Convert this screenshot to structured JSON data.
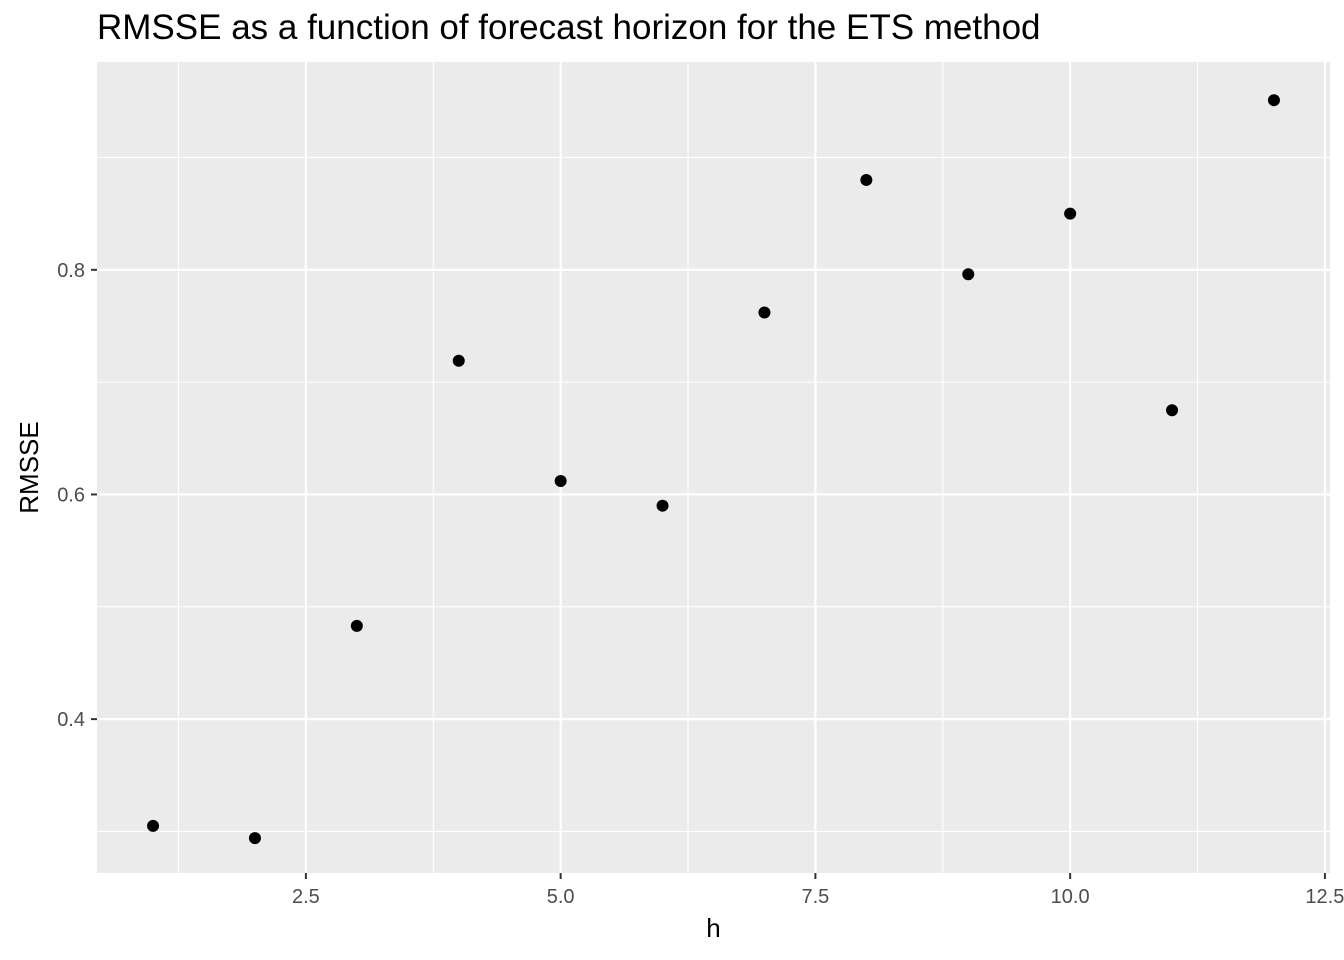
{
  "chart_data": {
    "type": "scatter",
    "title": "RMSSE as a function of forecast horizon for the ETS method",
    "xlabel": "h",
    "ylabel": "RMSSE",
    "xlim": [
      0.45,
      12.55
    ],
    "ylim": [
      0.263,
      0.985
    ],
    "x_ticks": [
      2.5,
      5.0,
      7.5,
      10.0,
      12.5
    ],
    "x_tick_labels": [
      "2.5",
      "5.0",
      "7.5",
      "10.0",
      "12.5"
    ],
    "x_minor_ticks": [
      1.25,
      3.75,
      6.25,
      8.75,
      11.25
    ],
    "y_ticks": [
      0.4,
      0.6,
      0.8
    ],
    "y_tick_labels": [
      "0.4",
      "0.6",
      "0.8"
    ],
    "y_minor_ticks": [
      0.3,
      0.5,
      0.7,
      0.9
    ],
    "grid": true,
    "panel_color": "#ebebeb",
    "grid_color": "#ffffff",
    "point_color": "#000000",
    "x": [
      1,
      2,
      3,
      4,
      5,
      6,
      7,
      8,
      9,
      10,
      11,
      12
    ],
    "y": [
      0.305,
      0.294,
      0.483,
      0.719,
      0.612,
      0.59,
      0.762,
      0.88,
      0.796,
      0.85,
      0.675,
      0.951
    ]
  }
}
